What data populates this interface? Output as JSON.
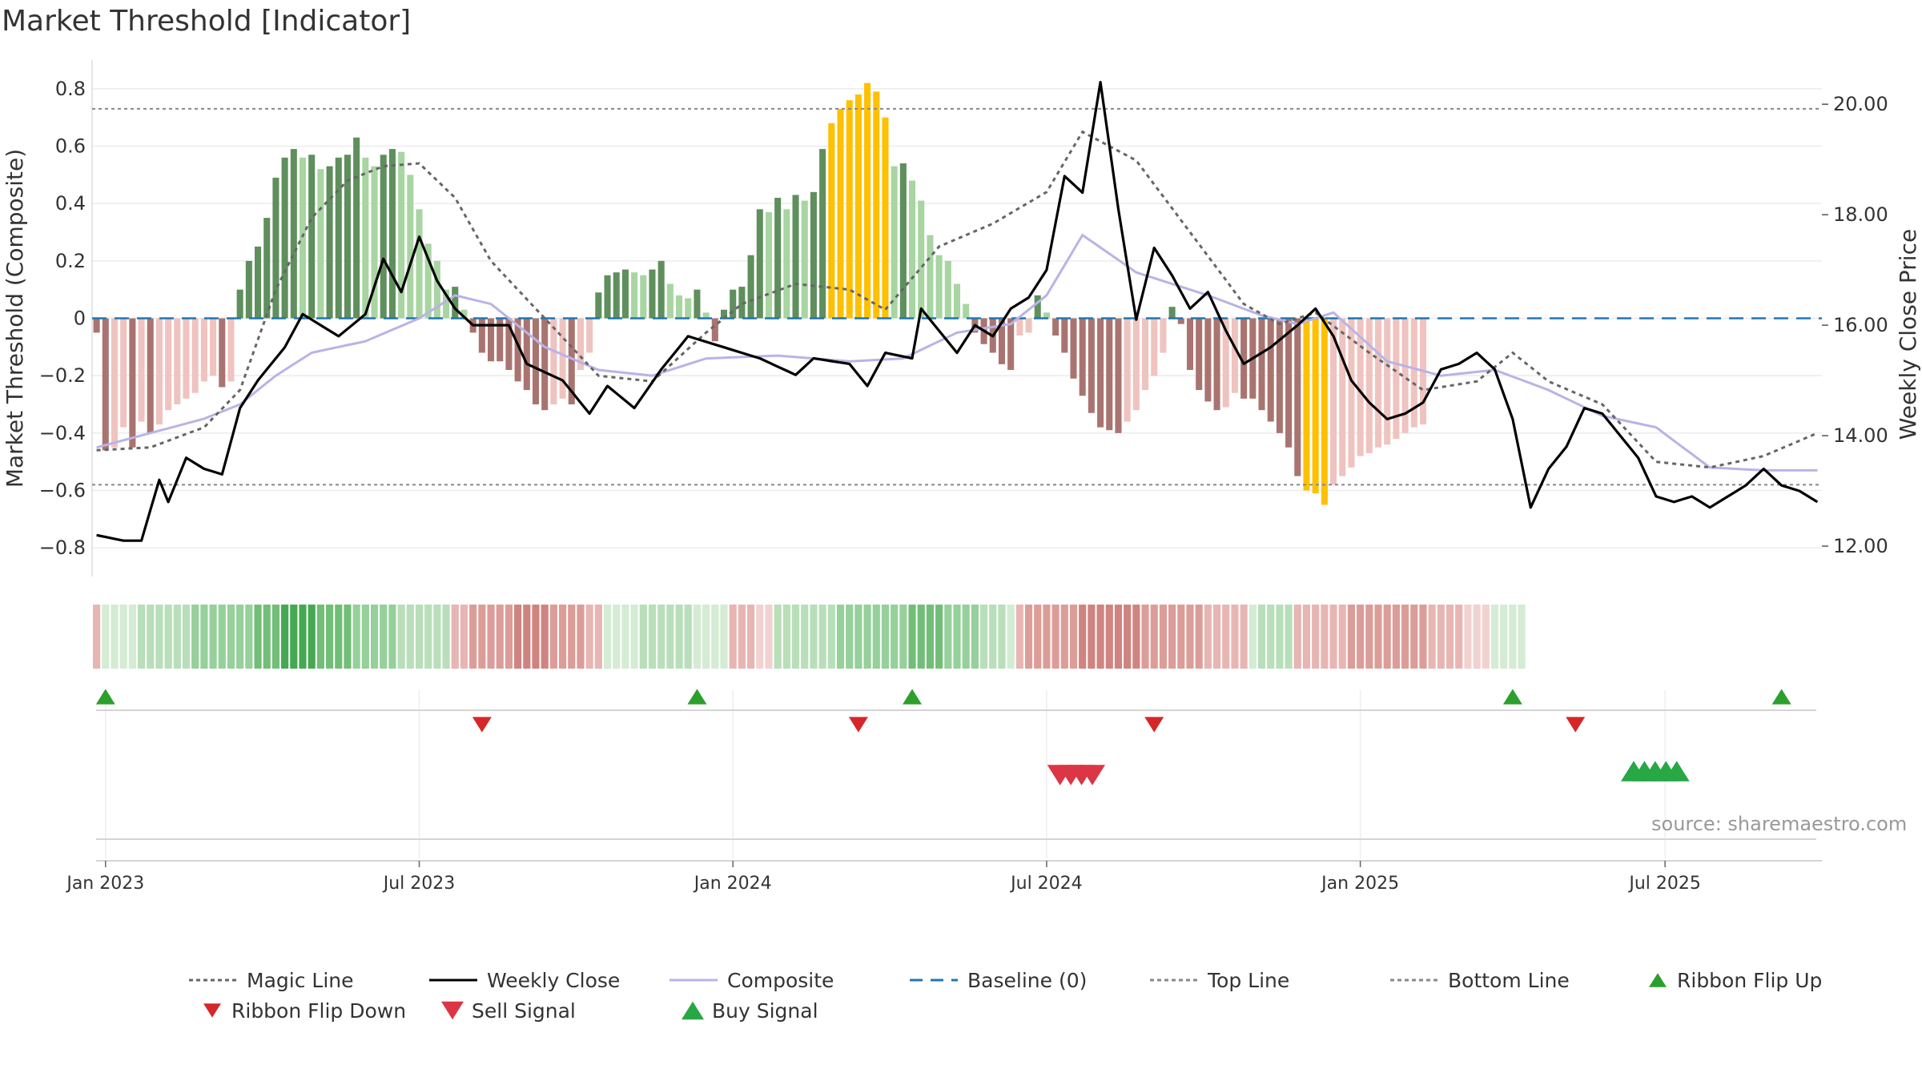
{
  "title": "Market Threshold [Indicator]",
  "source": "source: sharemaestro.com",
  "chart_data": {
    "type": "bar",
    "title": "Market Threshold [Indicator]",
    "ylabel_left": "Market Threshold (Composite)",
    "ylabel_right": "Weekly Close Price",
    "ylim_left": [
      -0.9,
      0.9
    ],
    "ylim_right": [
      11.45,
      20.8
    ],
    "left_ticks": [
      "0.8",
      "0.6",
      "0.4",
      "0.2",
      "0",
      "−0.2",
      "−0.4",
      "−0.6",
      "−0.8"
    ],
    "left_tick_values": [
      0.8,
      0.6,
      0.4,
      0.2,
      0,
      -0.2,
      -0.4,
      -0.6,
      -0.8
    ],
    "right_ticks": [
      "20.00",
      "18.00",
      "16.00",
      "14.00",
      "12.00"
    ],
    "right_tick_values": [
      20,
      18,
      16,
      14,
      12
    ],
    "x_ticks": [
      "Jan 2023",
      "Jul 2023",
      "Jan 2024",
      "Jul 2024",
      "Jan 2025",
      "Jul 2025"
    ],
    "x_tick_weeks": [
      1,
      36,
      71,
      106,
      141,
      175
    ],
    "weeks": 193,
    "top_line": 0.73,
    "bottom_line": -0.58,
    "grid": true,
    "legend_position": "bottom",
    "legend": [
      {
        "label": "Magic Line",
        "kind": "dotted",
        "color": "#666666"
      },
      {
        "label": "Weekly Close",
        "kind": "solid",
        "color": "#000000"
      },
      {
        "label": "Composite",
        "kind": "solid",
        "color": "#b9b3e6"
      },
      {
        "label": "Baseline (0)",
        "kind": "dashed",
        "color": "#1f77b4"
      },
      {
        "label": "Top Line",
        "kind": "dotted",
        "color": "#888888"
      },
      {
        "label": "Bottom Line",
        "kind": "dotted",
        "color": "#888888"
      },
      {
        "label": "Ribbon Flip Up",
        "kind": "tri-up",
        "color": "#2ca02c"
      },
      {
        "label": "Ribbon Flip Down",
        "kind": "tri-down",
        "color": "#d62728"
      },
      {
        "label": "Sell Signal",
        "kind": "tri-down",
        "color": "#dc3545"
      },
      {
        "label": "Buy Signal",
        "kind": "tri-up",
        "color": "#28a745"
      }
    ],
    "colors": {
      "strong_pos": "#5e8f5c",
      "weak_pos": "#a8d5a2",
      "strong_neg": "#a97470",
      "weak_neg": "#efc3bf",
      "extreme": "#ffc000",
      "price": "#000000",
      "composite": "#b9b3e6",
      "magic": "#666666",
      "baseline": "#1f77b4",
      "ribbon_pos": "#3aa64a",
      "ribbon_neg": "#c05a55"
    },
    "composite_anchors": [
      [
        0,
        -0.45
      ],
      [
        6,
        -0.4
      ],
      [
        12,
        -0.35
      ],
      [
        16,
        -0.3
      ],
      [
        20,
        -0.2
      ],
      [
        24,
        -0.12
      ],
      [
        30,
        -0.08
      ],
      [
        36,
        0
      ],
      [
        40,
        0.08
      ],
      [
        44,
        0.05
      ],
      [
        50,
        -0.1
      ],
      [
        56,
        -0.18
      ],
      [
        62,
        -0.2
      ],
      [
        68,
        -0.14
      ],
      [
        76,
        -0.13
      ],
      [
        84,
        -0.15
      ],
      [
        90,
        -0.14
      ],
      [
        96,
        -0.05
      ],
      [
        102,
        -0.02
      ],
      [
        106,
        0.08
      ],
      [
        110,
        0.29
      ],
      [
        116,
        0.16
      ],
      [
        124,
        0.08
      ],
      [
        130,
        0.01
      ],
      [
        134,
        -0.02
      ],
      [
        138,
        0.02
      ],
      [
        144,
        -0.15
      ],
      [
        150,
        -0.2
      ],
      [
        156,
        -0.18
      ],
      [
        162,
        -0.25
      ],
      [
        168,
        -0.34
      ],
      [
        174,
        -0.38
      ],
      [
        180,
        -0.52
      ],
      [
        186,
        -0.53
      ],
      [
        192,
        -0.53
      ]
    ],
    "magic_anchors": [
      [
        0,
        -0.46
      ],
      [
        6,
        -0.45
      ],
      [
        12,
        -0.38
      ],
      [
        16,
        -0.25
      ],
      [
        20,
        0.1
      ],
      [
        24,
        0.35
      ],
      [
        28,
        0.48
      ],
      [
        32,
        0.53
      ],
      [
        36,
        0.54
      ],
      [
        40,
        0.42
      ],
      [
        44,
        0.2
      ],
      [
        50,
        0.0
      ],
      [
        56,
        -0.2
      ],
      [
        62,
        -0.22
      ],
      [
        68,
        -0.05
      ],
      [
        72,
        0.05
      ],
      [
        78,
        0.12
      ],
      [
        84,
        0.1
      ],
      [
        88,
        0.03
      ],
      [
        94,
        0.25
      ],
      [
        100,
        0.33
      ],
      [
        106,
        0.44
      ],
      [
        110,
        0.65
      ],
      [
        116,
        0.55
      ],
      [
        122,
        0.3
      ],
      [
        128,
        0.05
      ],
      [
        132,
        -0.02
      ],
      [
        136,
        0.02
      ],
      [
        142,
        -0.12
      ],
      [
        148,
        -0.25
      ],
      [
        154,
        -0.22
      ],
      [
        158,
        -0.12
      ],
      [
        162,
        -0.22
      ],
      [
        168,
        -0.3
      ],
      [
        174,
        -0.5
      ],
      [
        180,
        -0.52
      ],
      [
        186,
        -0.48
      ],
      [
        192,
        -0.4
      ]
    ],
    "price_anchors": [
      [
        0,
        12.2
      ],
      [
        3,
        12.1
      ],
      [
        5,
        12.1
      ],
      [
        7,
        13.2
      ],
      [
        8,
        12.8
      ],
      [
        10,
        13.6
      ],
      [
        12,
        13.4
      ],
      [
        14,
        13.3
      ],
      [
        16,
        14.5
      ],
      [
        18,
        15.0
      ],
      [
        21,
        15.6
      ],
      [
        23,
        16.2
      ],
      [
        25,
        16.0
      ],
      [
        27,
        15.8
      ],
      [
        30,
        16.2
      ],
      [
        32,
        17.2
      ],
      [
        34,
        16.6
      ],
      [
        36,
        17.6
      ],
      [
        38,
        16.8
      ],
      [
        40,
        16.3
      ],
      [
        42,
        16.0
      ],
      [
        46,
        16.0
      ],
      [
        48,
        15.3
      ],
      [
        52,
        15.0
      ],
      [
        55,
        14.4
      ],
      [
        57,
        14.9
      ],
      [
        60,
        14.5
      ],
      [
        63,
        15.2
      ],
      [
        66,
        15.8
      ],
      [
        70,
        15.6
      ],
      [
        74,
        15.4
      ],
      [
        78,
        15.1
      ],
      [
        80,
        15.4
      ],
      [
        84,
        15.3
      ],
      [
        86,
        14.9
      ],
      [
        88,
        15.5
      ],
      [
        91,
        15.4
      ],
      [
        92,
        16.3
      ],
      [
        94,
        15.9
      ],
      [
        96,
        15.5
      ],
      [
        98,
        16.0
      ],
      [
        100,
        15.8
      ],
      [
        102,
        16.3
      ],
      [
        104,
        16.5
      ],
      [
        106,
        17.0
      ],
      [
        108,
        18.7
      ],
      [
        110,
        18.4
      ],
      [
        112,
        20.4
      ],
      [
        114,
        18.1
      ],
      [
        116,
        16.1
      ],
      [
        118,
        17.4
      ],
      [
        120,
        16.9
      ],
      [
        122,
        16.3
      ],
      [
        124,
        16.6
      ],
      [
        126,
        15.9
      ],
      [
        128,
        15.3
      ],
      [
        131,
        15.6
      ],
      [
        134,
        16.0
      ],
      [
        136,
        16.3
      ],
      [
        138,
        15.8
      ],
      [
        140,
        15.0
      ],
      [
        142,
        14.6
      ],
      [
        144,
        14.3
      ],
      [
        146,
        14.4
      ],
      [
        148,
        14.6
      ],
      [
        150,
        15.2
      ],
      [
        152,
        15.3
      ],
      [
        154,
        15.5
      ],
      [
        156,
        15.2
      ],
      [
        158,
        14.3
      ],
      [
        160,
        12.7
      ],
      [
        162,
        13.4
      ],
      [
        164,
        13.8
      ],
      [
        166,
        14.5
      ],
      [
        168,
        14.4
      ],
      [
        170,
        14.0
      ],
      [
        172,
        13.6
      ],
      [
        174,
        12.9
      ],
      [
        176,
        12.8
      ],
      [
        178,
        12.9
      ],
      [
        180,
        12.7
      ],
      [
        182,
        12.9
      ],
      [
        184,
        13.1
      ],
      [
        186,
        13.4
      ],
      [
        188,
        13.1
      ],
      [
        190,
        13.0
      ],
      [
        192,
        12.8
      ]
    ],
    "bars": "-.05,-.46,-.45,-.38,-.45,-.36,-.40,-.37,-.32,-.30,-.28,-.26,-.22,-.20,-.24,-.22,0.10,0.20,0.25,0.35,0.49,0.56,0.59,0.56,0.57,0.52,0.53,0.56,0.57,0.63,0.56,0.53,0.57,0.59,0.58,0.50,0.38,0.26,0.20,0.10,0.11,0.03,-.05,-.12,-.15,-.15,-.18,-.22,-.25,-.30,-.32,-.30,-.28,-.30,-.18,-.12,0.09,0.15,0.16,0.17,0.16,0.15,0.17,0.20,0.12,0.08,0.07,0.10,0.02,-.08,0.03,0.10,0.11,0.22,0.38,0.37,0.42,0.38,0.43,0.41,0.44,0.59,0.68,0.73,0.76,0.78,0.82,0.79,0.70,0.53,0.54,0.48,0.41,0.29,0.22,0.20,0.12,0.05,-.05,-.09,-.12,-.16,-.18,-.06,-.05,0.08,0.02,-.06,-.12,-.21,-.27,-.33,-.38,-.39,-.40,-.36,-.32,-.25,-.20,-.12,0.04,-.02,-.18,-.25,-.29,-.32,-.31,-.26,-.28,-.28,-.32,-.36,-.40,-.45,-.55,-.60,-.61,-.65,-.58,-.55,-.52,-.48,-.47,-.45,-.44,-.42,-.40,-.38,-.37",
    "ribbon": "-2,1,1,1,1,2,2,2,2,2,2,3,3,3,3,3,3,3,4,4,4,5,5,5,5,4,4,4,4,3,3,3,3,3,2,2,2,2,2,2,-2,-2,-3,-3,-3,-3,-3,-4,-4,-4,-4,-3,-3,-3,-3,-2,-2,1,1,1,1,2,2,2,2,2,2,1,1,1,1,-2,-2,-2,-1,-1,2,2,2,2,2,2,2,3,3,3,3,3,3,3,3,4,4,4,4,3,3,3,3,2,2,2,1,-2,-3,-3,-3,-3,-3,-3,-4,-4,-4,-4,-4,-4,-4,-3,-3,-3,-3,-3,-3,-3,-2,-2,-2,-2,-2,1,2,2,2,2,-2,-2,-2,-2,-2,-2,-3,-3,-3,-3,-3,-3,-3,-3,-3,-2,-2,-2,-2,-1,-1,-1,1,1,1,1",
    "ribbon_flip_up": [
      1,
      67,
      91,
      158,
      188
    ],
    "ribbon_flip_down": [
      43,
      85,
      118,
      165
    ],
    "sell_signal": [
      107.5,
      108.7,
      109.9,
      111.1
    ],
    "buy_signal": [
      171.5,
      172.7,
      173.9,
      175.1,
      176.3
    ]
  }
}
